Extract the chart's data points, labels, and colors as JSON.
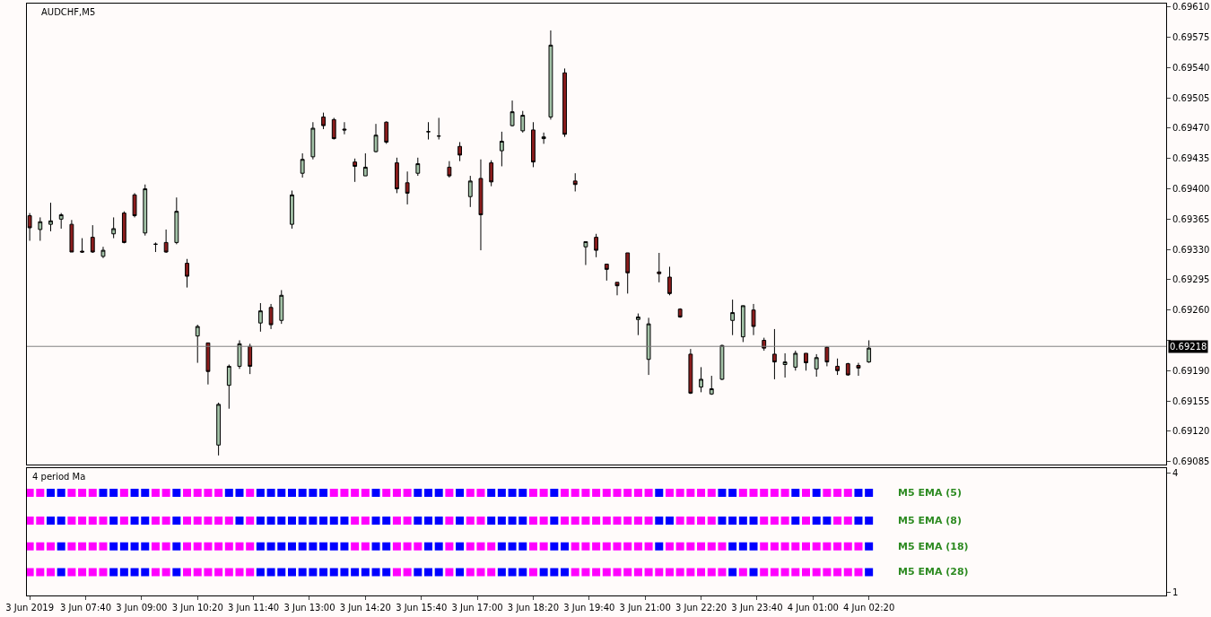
{
  "chart_data": [
    {
      "type": "candlestick",
      "title": "AUDCHF,M5",
      "grid": false,
      "tick_labels": "y",
      "x": [
        "2019-06-03T06:20",
        "2019-06-03T06:35",
        "2019-06-03T06:50",
        "2019-06-03T07:05",
        "2019-06-03T07:20",
        "2019-06-03T07:35",
        "2019-06-03T07:50",
        "2019-06-03T08:05",
        "2019-06-03T08:20",
        "2019-06-03T08:35",
        "2019-06-03T08:50",
        "2019-06-03T09:05",
        "2019-06-03T09:20",
        "2019-06-03T09:35",
        "2019-06-03T09:50",
        "2019-06-03T10:05",
        "2019-06-03T10:20",
        "2019-06-03T10:35",
        "2019-06-03T10:50",
        "2019-06-03T11:05",
        "2019-06-03T11:20",
        "2019-06-03T11:35",
        "2019-06-03T11:50",
        "2019-06-03T12:05",
        "2019-06-03T12:20",
        "2019-06-03T12:35",
        "2019-06-03T12:50",
        "2019-06-03T13:05",
        "2019-06-03T13:20",
        "2019-06-03T13:35",
        "2019-06-03T13:50",
        "2019-06-03T14:05",
        "2019-06-03T14:20",
        "2019-06-03T14:35",
        "2019-06-03T14:50",
        "2019-06-03T15:05",
        "2019-06-03T15:20",
        "2019-06-03T15:35",
        "2019-06-03T15:50",
        "2019-06-03T16:05",
        "2019-06-03T16:20",
        "2019-06-03T16:35",
        "2019-06-03T16:50",
        "2019-06-03T17:05",
        "2019-06-03T17:20",
        "2019-06-03T17:35",
        "2019-06-03T17:50",
        "2019-06-03T18:05",
        "2019-06-03T18:20",
        "2019-06-03T18:35",
        "2019-06-03T18:45",
        "2019-06-03T19:05",
        "2019-06-03T19:20",
        "2019-06-03T19:35",
        "2019-06-03T19:50",
        "2019-06-03T20:05",
        "2019-06-03T20:20",
        "2019-06-03T20:35",
        "2019-06-03T20:50",
        "2019-06-03T21:05",
        "2019-06-03T21:20",
        "2019-06-03T21:35",
        "2019-06-03T21:50",
        "2019-06-03T22:05",
        "2019-06-03T22:20",
        "2019-06-03T22:35",
        "2019-06-03T22:50",
        "2019-06-03T23:05",
        "2019-06-03T23:20",
        "2019-06-03T23:35",
        "2019-06-03T23:50",
        "2019-06-04T00:05",
        "2019-06-04T00:20",
        "2019-06-04T00:35",
        "2019-06-04T00:50",
        "2019-06-04T01:05",
        "2019-06-04T01:20",
        "2019-06-04T01:35",
        "2019-06-04T01:50",
        "2019-06-04T02:05",
        "2019-06-04T02:20"
      ],
      "ohlc": [
        [
          0.69369,
          0.69372,
          0.6934,
          0.69355
        ],
        [
          0.69353,
          0.69367,
          0.6934,
          0.69362
        ],
        [
          0.69359,
          0.69384,
          0.69351,
          0.69363
        ],
        [
          0.69365,
          0.69372,
          0.69354,
          0.6937
        ],
        [
          0.69359,
          0.69364,
          0.69327,
          0.69327
        ],
        [
          0.69328,
          0.69343,
          0.69326,
          0.69327
        ],
        [
          0.69344,
          0.69358,
          0.69326,
          0.69327
        ],
        [
          0.69322,
          0.69333,
          0.6932,
          0.69329
        ],
        [
          0.69348,
          0.69367,
          0.69343,
          0.69354
        ],
        [
          0.69372,
          0.69374,
          0.69337,
          0.69338
        ],
        [
          0.69393,
          0.69395,
          0.69367,
          0.69369
        ],
        [
          0.69349,
          0.69405,
          0.69346,
          0.694
        ],
        [
          0.69336,
          0.69338,
          0.69327,
          0.69336
        ],
        [
          0.69338,
          0.69353,
          0.69326,
          0.69327
        ],
        [
          0.69338,
          0.6939,
          0.69336,
          0.69374
        ],
        [
          0.69314,
          0.69319,
          0.69286,
          0.69299
        ],
        [
          0.6923,
          0.69243,
          0.69199,
          0.69241
        ],
        [
          0.69222,
          0.69222,
          0.69174,
          0.69189
        ],
        [
          0.69104,
          0.69153,
          0.69092,
          0.69151
        ],
        [
          0.69173,
          0.69197,
          0.69146,
          0.69195
        ],
        [
          0.69195,
          0.69225,
          0.69192,
          0.69221
        ],
        [
          0.69218,
          0.69221,
          0.69186,
          0.69195
        ],
        [
          0.69245,
          0.69268,
          0.69235,
          0.69259
        ],
        [
          0.69263,
          0.69267,
          0.69238,
          0.69243
        ],
        [
          0.69248,
          0.69283,
          0.69244,
          0.69277
        ],
        [
          0.69359,
          0.69398,
          0.69354,
          0.69393
        ],
        [
          0.69418,
          0.69441,
          0.69413,
          0.69434
        ],
        [
          0.69437,
          0.69477,
          0.69434,
          0.6947
        ],
        [
          0.69483,
          0.69488,
          0.69469,
          0.69473
        ],
        [
          0.6948,
          0.69482,
          0.69457,
          0.69458
        ],
        [
          0.69469,
          0.69477,
          0.69463,
          0.69468
        ],
        [
          0.69431,
          0.69435,
          0.69408,
          0.69426
        ],
        [
          0.69415,
          0.69441,
          0.69415,
          0.69425
        ],
        [
          0.69443,
          0.69475,
          0.69442,
          0.69462
        ],
        [
          0.69477,
          0.69478,
          0.69452,
          0.69454
        ],
        [
          0.6943,
          0.69436,
          0.69395,
          0.694
        ],
        [
          0.69407,
          0.6942,
          0.69382,
          0.69395
        ],
        [
          0.69418,
          0.69436,
          0.69415,
          0.69429
        ],
        [
          0.69466,
          0.69477,
          0.69457,
          0.69466
        ],
        [
          0.69461,
          0.69482,
          0.69457,
          0.69461
        ],
        [
          0.69425,
          0.69432,
          0.69413,
          0.69415
        ],
        [
          0.69449,
          0.69454,
          0.69432,
          0.69439
        ],
        [
          0.69391,
          0.69415,
          0.69379,
          0.69409
        ],
        [
          0.69412,
          0.69434,
          0.69329,
          0.6937
        ],
        [
          0.6943,
          0.69433,
          0.69403,
          0.69408
        ],
        [
          0.69444,
          0.69466,
          0.69426,
          0.69455
        ],
        [
          0.69473,
          0.69502,
          0.69472,
          0.69489
        ],
        [
          0.69467,
          0.6949,
          0.69465,
          0.69485
        ],
        [
          0.69468,
          0.69477,
          0.69425,
          0.69431
        ],
        [
          0.69458,
          0.69465,
          0.69452,
          0.6946
        ],
        [
          0.69483,
          0.69583,
          0.6948,
          0.69566
        ],
        [
          0.69534,
          0.69539,
          0.6946,
          0.69463
        ],
        [
          0.69409,
          0.69418,
          0.69397,
          0.69405
        ],
        [
          0.69333,
          0.69339,
          0.69312,
          0.69339
        ],
        [
          0.69344,
          0.69348,
          0.69321,
          0.69329
        ],
        [
          0.69313,
          0.69313,
          0.69294,
          0.69307
        ],
        [
          0.69292,
          0.69292,
          0.69277,
          0.69288
        ],
        [
          0.69326,
          0.69326,
          0.69279,
          0.69303
        ],
        [
          0.69249,
          0.69256,
          0.69231,
          0.69252
        ],
        [
          0.69203,
          0.69251,
          0.69185,
          0.69244
        ],
        [
          0.69304,
          0.69326,
          0.69292,
          0.69302
        ],
        [
          0.69298,
          0.6931,
          0.69277,
          0.69279
        ],
        [
          0.69261,
          0.69262,
          0.69251,
          0.69252
        ],
        [
          0.69209,
          0.69215,
          0.69163,
          0.69164
        ],
        [
          0.69171,
          0.69194,
          0.69165,
          0.6918
        ],
        [
          0.69163,
          0.69184,
          0.69162,
          0.69169
        ],
        [
          0.6918,
          0.6922,
          0.69179,
          0.69219
        ],
        [
          0.69248,
          0.69272,
          0.69231,
          0.69257
        ],
        [
          0.69229,
          0.69265,
          0.69223,
          0.69265
        ],
        [
          0.6926,
          0.69267,
          0.69231,
          0.69241
        ],
        [
          0.69225,
          0.69228,
          0.69213,
          0.69216
        ],
        [
          0.69209,
          0.69238,
          0.6918,
          0.692
        ],
        [
          0.69197,
          0.6921,
          0.69182,
          0.692
        ],
        [
          0.69194,
          0.69213,
          0.6919,
          0.6921
        ],
        [
          0.6921,
          0.6921,
          0.6919,
          0.69199
        ],
        [
          0.69192,
          0.69209,
          0.69183,
          0.69205
        ],
        [
          0.69217,
          0.69218,
          0.69195,
          0.692
        ],
        [
          0.69195,
          0.69204,
          0.69185,
          0.6919
        ],
        [
          0.69198,
          0.69199,
          0.69184,
          0.69185
        ],
        [
          0.69196,
          0.69199,
          0.69184,
          0.69193
        ],
        [
          0.692,
          0.69225,
          0.69199,
          0.69216
        ]
      ],
      "xlim": [
        "2019-06-03T06:16",
        "2019-06-04T09:25"
      ],
      "ylim": [
        0.69081,
        0.69614
      ],
      "yticks": [
        0.69085,
        {
          "value": 0.6912,
          "label": "0.69120"
        },
        0.69155,
        {
          "value": 0.6919,
          "label": "0.69190"
        },
        {
          "value": 0.69225,
          "label": null
        },
        {
          "value": 0.6926,
          "label": "0.69260"
        },
        0.69295,
        {
          "value": 0.6933,
          "label": "0.69330"
        },
        0.69365,
        {
          "value": 0.694,
          "label": "0.69400"
        },
        0.69435,
        {
          "value": 0.6947,
          "label": "0.69470"
        },
        0.69505,
        {
          "value": 0.6954,
          "label": "0.69540"
        },
        0.69575,
        {
          "value": 0.6961,
          "label": "0.69610"
        }
      ],
      "ref_lines": [
        {
          "axis": "y",
          "value": 0.69218,
          "label": "0.69218",
          "color": "#808080"
        }
      ]
    },
    {
      "type": "scatter",
      "title": "4 period Ma",
      "marker": "square",
      "grid": false,
      "x": [
        "2019-06-03T06:20",
        "2019-06-03T06:35",
        "2019-06-03T06:50",
        "2019-06-03T07:05",
        "2019-06-03T07:20",
        "2019-06-03T07:35",
        "2019-06-03T07:50",
        "2019-06-03T08:05",
        "2019-06-03T08:20",
        "2019-06-03T08:35",
        "2019-06-03T08:50",
        "2019-06-03T09:05",
        "2019-06-03T09:20",
        "2019-06-03T09:35",
        "2019-06-03T09:50",
        "2019-06-03T10:05",
        "2019-06-03T10:20",
        "2019-06-03T10:35",
        "2019-06-03T10:50",
        "2019-06-03T11:05",
        "2019-06-03T11:20",
        "2019-06-03T11:35",
        "2019-06-03T11:50",
        "2019-06-03T12:05",
        "2019-06-03T12:20",
        "2019-06-03T12:35",
        "2019-06-03T12:50",
        "2019-06-03T13:05",
        "2019-06-03T13:20",
        "2019-06-03T13:35",
        "2019-06-03T13:50",
        "2019-06-03T14:05",
        "2019-06-03T14:20",
        "2019-06-03T14:35",
        "2019-06-03T14:50",
        "2019-06-03T15:05",
        "2019-06-03T15:20",
        "2019-06-03T15:35",
        "2019-06-03T15:50",
        "2019-06-03T16:05",
        "2019-06-03T16:20",
        "2019-06-03T16:35",
        "2019-06-03T16:50",
        "2019-06-03T17:05",
        "2019-06-03T17:20",
        "2019-06-03T17:35",
        "2019-06-03T17:50",
        "2019-06-03T18:05",
        "2019-06-03T18:20",
        "2019-06-03T18:35",
        "2019-06-03T18:50",
        "2019-06-03T19:05",
        "2019-06-03T19:20",
        "2019-06-03T19:35",
        "2019-06-03T19:50",
        "2019-06-03T20:05",
        "2019-06-03T20:20",
        "2019-06-03T20:35",
        "2019-06-03T20:50",
        "2019-06-03T21:05",
        "2019-06-03T21:20",
        "2019-06-03T21:35",
        "2019-06-03T21:50",
        "2019-06-03T22:05",
        "2019-06-03T22:20",
        "2019-06-03T22:35",
        "2019-06-03T22:50",
        "2019-06-03T23:05",
        "2019-06-03T23:20",
        "2019-06-03T23:35",
        "2019-06-03T23:50",
        "2019-06-04T00:05",
        "2019-06-04T00:20",
        "2019-06-04T00:35",
        "2019-06-04T00:50",
        "2019-06-04T01:05",
        "2019-06-04T01:20",
        "2019-06-04T01:35",
        "2019-06-04T01:50",
        "2019-06-04T02:05",
        "2019-06-04T02:20"
      ],
      "xlim": [
        "2019-06-03T06:16",
        "2019-06-04T09:25"
      ],
      "xticks": [
        {
          "value": "2019-06-03T06:20",
          "label": "3 Jun 2019"
        },
        {
          "value": "2019-06-03T07:40",
          "label": "3 Jun 07:40"
        },
        {
          "value": "2019-06-03T09:00",
          "label": "3 Jun 09:00"
        },
        {
          "value": "2019-06-03T10:20",
          "label": "3 Jun 10:20"
        },
        {
          "value": "2019-06-03T11:40",
          "label": "3 Jun 11:40"
        },
        {
          "value": "2019-06-03T13:00",
          "label": "3 Jun 13:00"
        },
        {
          "value": "2019-06-03T14:20",
          "label": "3 Jun 14:20"
        },
        {
          "value": "2019-06-03T15:40",
          "label": "3 Jun 15:40"
        },
        {
          "value": "2019-06-03T17:00",
          "label": "3 Jun 17:00"
        },
        {
          "value": "2019-06-03T18:20",
          "label": "3 Jun 18:20"
        },
        {
          "value": "2019-06-03T19:40",
          "label": "3 Jun 19:40"
        },
        {
          "value": "2019-06-03T21:00",
          "label": "3 Jun 21:00"
        },
        {
          "value": "2019-06-03T22:20",
          "label": "3 Jun 22:20"
        },
        {
          "value": "2019-06-03T23:40",
          "label": "3 Jun 23:40"
        },
        {
          "value": "2019-06-04T01:00",
          "label": "4 Jun 01:00"
        },
        {
          "value": "2019-06-04T02:20",
          "label": "4 Jun 02:20"
        }
      ],
      "ylim": [
        0.91,
        4.11
      ],
      "yticks": [
        1,
        4
      ],
      "series": [
        {
          "name": "M5 EMA (5)",
          "values": [
            3.5,
            3.5,
            3.5,
            3.5,
            3.5,
            3.5,
            3.5,
            3.5,
            3.5,
            3.5,
            3.5,
            3.5,
            3.5,
            3.5,
            3.5,
            3.5,
            3.5,
            3.5,
            3.5,
            3.5,
            3.5,
            3.5,
            3.5,
            3.5,
            3.5,
            3.5,
            3.5,
            3.5,
            3.5,
            3.5,
            3.5,
            3.5,
            3.5,
            3.5,
            3.5,
            3.5,
            3.5,
            3.5,
            3.5,
            3.5,
            3.5,
            3.5,
            3.5,
            3.5,
            3.5,
            3.5,
            3.5,
            3.5,
            3.5,
            3.5,
            3.5,
            3.5,
            3.5,
            3.5,
            3.5,
            3.5,
            3.5,
            3.5,
            3.5,
            3.5,
            3.5,
            3.5,
            3.5,
            3.5,
            3.5,
            3.5,
            3.5,
            3.5,
            3.5,
            3.5,
            3.5,
            3.5,
            3.5,
            3.5,
            3.5,
            3.5,
            3.5,
            3.5,
            3.5,
            3.5,
            3.5
          ],
          "colors": [
            "#ff00ff",
            "#ff00ff",
            "#0000ff",
            "#0000ff",
            "#ff00ff",
            "#ff00ff",
            "#ff00ff",
            "#0000ff",
            "#0000ff",
            "#ff00ff",
            "#0000ff",
            "#0000ff",
            "#ff00ff",
            "#ff00ff",
            "#0000ff",
            "#ff00ff",
            "#ff00ff",
            "#ff00ff",
            "#ff00ff",
            "#0000ff",
            "#0000ff",
            "#ff00ff",
            "#0000ff",
            "#0000ff",
            "#0000ff",
            "#0000ff",
            "#0000ff",
            "#0000ff",
            "#0000ff",
            "#ff00ff",
            "#ff00ff",
            "#ff00ff",
            "#ff00ff",
            "#0000ff",
            "#ff00ff",
            "#ff00ff",
            "#ff00ff",
            "#0000ff",
            "#0000ff",
            "#0000ff",
            "#ff00ff",
            "#0000ff",
            "#ff00ff",
            "#ff00ff",
            "#0000ff",
            "#0000ff",
            "#0000ff",
            "#0000ff",
            "#ff00ff",
            "#ff00ff",
            "#0000ff",
            "#ff00ff",
            "#ff00ff",
            "#ff00ff",
            "#ff00ff",
            "#ff00ff",
            "#ff00ff",
            "#ff00ff",
            "#ff00ff",
            "#ff00ff",
            "#0000ff",
            "#ff00ff",
            "#ff00ff",
            "#ff00ff",
            "#ff00ff",
            "#ff00ff",
            "#0000ff",
            "#0000ff",
            "#ff00ff",
            "#ff00ff",
            "#ff00ff",
            "#ff00ff",
            "#ff00ff",
            "#0000ff",
            "#ff00ff",
            "#0000ff",
            "#ff00ff",
            "#ff00ff",
            "#ff00ff",
            "#0000ff",
            "#0000ff"
          ]
        },
        {
          "name": "M5 EMA (8)",
          "values": [
            2.8,
            2.8,
            2.8,
            2.8,
            2.8,
            2.8,
            2.8,
            2.8,
            2.8,
            2.8,
            2.8,
            2.8,
            2.8,
            2.8,
            2.8,
            2.8,
            2.8,
            2.8,
            2.8,
            2.8,
            2.8,
            2.8,
            2.8,
            2.8,
            2.8,
            2.8,
            2.8,
            2.8,
            2.8,
            2.8,
            2.8,
            2.8,
            2.8,
            2.8,
            2.8,
            2.8,
            2.8,
            2.8,
            2.8,
            2.8,
            2.8,
            2.8,
            2.8,
            2.8,
            2.8,
            2.8,
            2.8,
            2.8,
            2.8,
            2.8,
            2.8,
            2.8,
            2.8,
            2.8,
            2.8,
            2.8,
            2.8,
            2.8,
            2.8,
            2.8,
            2.8,
            2.8,
            2.8,
            2.8,
            2.8,
            2.8,
            2.8,
            2.8,
            2.8,
            2.8,
            2.8,
            2.8,
            2.8,
            2.8,
            2.8,
            2.8,
            2.8,
            2.8,
            2.8,
            2.8,
            2.8
          ],
          "colors": [
            "#ff00ff",
            "#ff00ff",
            "#0000ff",
            "#0000ff",
            "#ff00ff",
            "#ff00ff",
            "#ff00ff",
            "#ff00ff",
            "#0000ff",
            "#ff00ff",
            "#0000ff",
            "#0000ff",
            "#ff00ff",
            "#ff00ff",
            "#0000ff",
            "#ff00ff",
            "#ff00ff",
            "#ff00ff",
            "#ff00ff",
            "#ff00ff",
            "#0000ff",
            "#ff00ff",
            "#0000ff",
            "#0000ff",
            "#0000ff",
            "#0000ff",
            "#0000ff",
            "#0000ff",
            "#0000ff",
            "#0000ff",
            "#0000ff",
            "#ff00ff",
            "#ff00ff",
            "#0000ff",
            "#0000ff",
            "#ff00ff",
            "#ff00ff",
            "#0000ff",
            "#0000ff",
            "#0000ff",
            "#ff00ff",
            "#0000ff",
            "#ff00ff",
            "#ff00ff",
            "#0000ff",
            "#0000ff",
            "#0000ff",
            "#0000ff",
            "#ff00ff",
            "#ff00ff",
            "#0000ff",
            "#ff00ff",
            "#ff00ff",
            "#ff00ff",
            "#ff00ff",
            "#ff00ff",
            "#ff00ff",
            "#ff00ff",
            "#ff00ff",
            "#ff00ff",
            "#0000ff",
            "#0000ff",
            "#ff00ff",
            "#ff00ff",
            "#ff00ff",
            "#ff00ff",
            "#0000ff",
            "#0000ff",
            "#0000ff",
            "#0000ff",
            "#ff00ff",
            "#ff00ff",
            "#ff00ff",
            "#0000ff",
            "#ff00ff",
            "#0000ff",
            "#0000ff",
            "#ff00ff",
            "#ff00ff",
            "#0000ff",
            "#0000ff"
          ]
        },
        {
          "name": "M5 EMA (18)",
          "values": [
            2.15,
            2.15,
            2.15,
            2.15,
            2.15,
            2.15,
            2.15,
            2.15,
            2.15,
            2.15,
            2.15,
            2.15,
            2.15,
            2.15,
            2.15,
            2.15,
            2.15,
            2.15,
            2.15,
            2.15,
            2.15,
            2.15,
            2.15,
            2.15,
            2.15,
            2.15,
            2.15,
            2.15,
            2.15,
            2.15,
            2.15,
            2.15,
            2.15,
            2.15,
            2.15,
            2.15,
            2.15,
            2.15,
            2.15,
            2.15,
            2.15,
            2.15,
            2.15,
            2.15,
            2.15,
            2.15,
            2.15,
            2.15,
            2.15,
            2.15,
            2.15,
            2.15,
            2.15,
            2.15,
            2.15,
            2.15,
            2.15,
            2.15,
            2.15,
            2.15,
            2.15,
            2.15,
            2.15,
            2.15,
            2.15,
            2.15,
            2.15,
            2.15,
            2.15,
            2.15,
            2.15,
            2.15,
            2.15,
            2.15,
            2.15,
            2.15,
            2.15,
            2.15,
            2.15,
            2.15,
            2.15
          ],
          "colors": [
            "#ff00ff",
            "#ff00ff",
            "#ff00ff",
            "#0000ff",
            "#ff00ff",
            "#ff00ff",
            "#ff00ff",
            "#ff00ff",
            "#0000ff",
            "#0000ff",
            "#0000ff",
            "#0000ff",
            "#ff00ff",
            "#ff00ff",
            "#0000ff",
            "#ff00ff",
            "#ff00ff",
            "#ff00ff",
            "#ff00ff",
            "#ff00ff",
            "#ff00ff",
            "#ff00ff",
            "#0000ff",
            "#0000ff",
            "#0000ff",
            "#0000ff",
            "#0000ff",
            "#0000ff",
            "#0000ff",
            "#0000ff",
            "#0000ff",
            "#ff00ff",
            "#ff00ff",
            "#0000ff",
            "#0000ff",
            "#ff00ff",
            "#ff00ff",
            "#ff00ff",
            "#0000ff",
            "#0000ff",
            "#ff00ff",
            "#0000ff",
            "#ff00ff",
            "#ff00ff",
            "#ff00ff",
            "#0000ff",
            "#0000ff",
            "#0000ff",
            "#ff00ff",
            "#ff00ff",
            "#0000ff",
            "#0000ff",
            "#ff00ff",
            "#ff00ff",
            "#ff00ff",
            "#ff00ff",
            "#ff00ff",
            "#ff00ff",
            "#ff00ff",
            "#ff00ff",
            "#0000ff",
            "#ff00ff",
            "#ff00ff",
            "#ff00ff",
            "#ff00ff",
            "#ff00ff",
            "#ff00ff",
            "#0000ff",
            "#0000ff",
            "#0000ff",
            "#ff00ff",
            "#ff00ff",
            "#ff00ff",
            "#ff00ff",
            "#ff00ff",
            "#ff00ff",
            "#ff00ff",
            "#ff00ff",
            "#ff00ff",
            "#ff00ff",
            "#0000ff"
          ]
        },
        {
          "name": "M5 EMA (28)",
          "values": [
            1.5,
            1.5,
            1.5,
            1.5,
            1.5,
            1.5,
            1.5,
            1.5,
            1.5,
            1.5,
            1.5,
            1.5,
            1.5,
            1.5,
            1.5,
            1.5,
            1.5,
            1.5,
            1.5,
            1.5,
            1.5,
            1.5,
            1.5,
            1.5,
            1.5,
            1.5,
            1.5,
            1.5,
            1.5,
            1.5,
            1.5,
            1.5,
            1.5,
            1.5,
            1.5,
            1.5,
            1.5,
            1.5,
            1.5,
            1.5,
            1.5,
            1.5,
            1.5,
            1.5,
            1.5,
            1.5,
            1.5,
            1.5,
            1.5,
            1.5,
            1.5,
            1.5,
            1.5,
            1.5,
            1.5,
            1.5,
            1.5,
            1.5,
            1.5,
            1.5,
            1.5,
            1.5,
            1.5,
            1.5,
            1.5,
            1.5,
            1.5,
            1.5,
            1.5,
            1.5,
            1.5,
            1.5,
            1.5,
            1.5,
            1.5,
            1.5,
            1.5,
            1.5,
            1.5,
            1.5,
            1.5
          ],
          "colors": [
            "#ff00ff",
            "#ff00ff",
            "#ff00ff",
            "#0000ff",
            "#ff00ff",
            "#ff00ff",
            "#ff00ff",
            "#ff00ff",
            "#0000ff",
            "#0000ff",
            "#0000ff",
            "#0000ff",
            "#ff00ff",
            "#ff00ff",
            "#0000ff",
            "#ff00ff",
            "#ff00ff",
            "#ff00ff",
            "#ff00ff",
            "#ff00ff",
            "#ff00ff",
            "#ff00ff",
            "#0000ff",
            "#0000ff",
            "#0000ff",
            "#0000ff",
            "#0000ff",
            "#0000ff",
            "#0000ff",
            "#0000ff",
            "#0000ff",
            "#0000ff",
            "#0000ff",
            "#0000ff",
            "#0000ff",
            "#ff00ff",
            "#ff00ff",
            "#0000ff",
            "#0000ff",
            "#0000ff",
            "#ff00ff",
            "#0000ff",
            "#ff00ff",
            "#ff00ff",
            "#ff00ff",
            "#0000ff",
            "#0000ff",
            "#0000ff",
            "#ff00ff",
            "#0000ff",
            "#0000ff",
            "#0000ff",
            "#ff00ff",
            "#ff00ff",
            "#ff00ff",
            "#ff00ff",
            "#ff00ff",
            "#ff00ff",
            "#ff00ff",
            "#ff00ff",
            "#ff00ff",
            "#ff00ff",
            "#ff00ff",
            "#ff00ff",
            "#ff00ff",
            "#ff00ff",
            "#ff00ff",
            "#0000ff",
            "#ff00ff",
            "#0000ff",
            "#ff00ff",
            "#ff00ff",
            "#ff00ff",
            "#ff00ff",
            "#ff00ff",
            "#ff00ff",
            "#ff00ff",
            "#ff00ff",
            "#ff00ff",
            "#ff00ff",
            "#0000ff"
          ]
        }
      ]
    }
  ]
}
